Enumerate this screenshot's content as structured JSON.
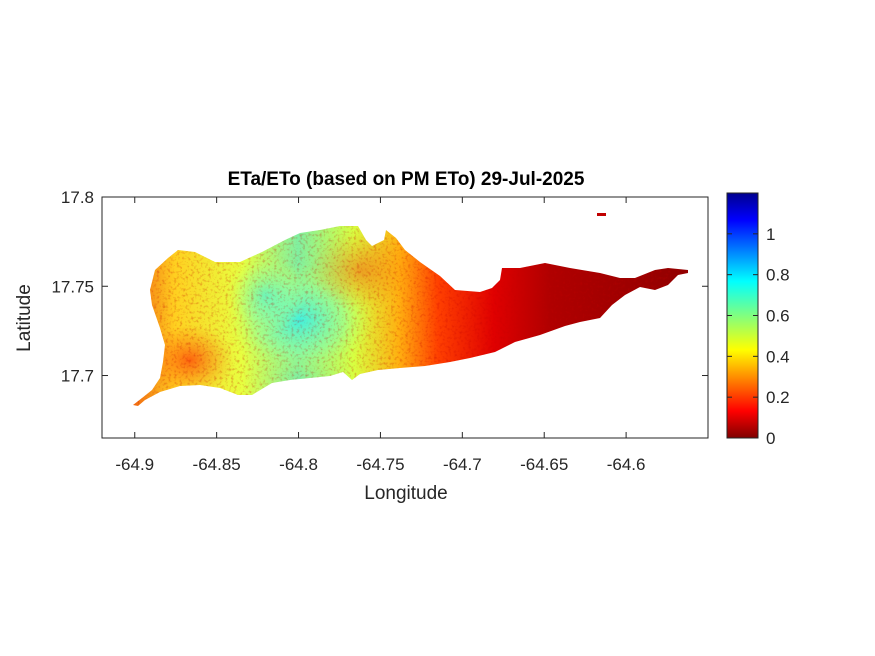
{
  "figure": {
    "title": "ETa/ETo (based on PM ETo) 29-Jul-2025",
    "xlabel": "Longitude",
    "ylabel": "Latitude"
  },
  "chart_data": {
    "type": "heatmap",
    "title": "ETa/ETo (based on PM ETo) 29-Jul-2025",
    "xlabel": "Longitude",
    "ylabel": "Latitude",
    "xlim": [
      -64.92,
      -64.55
    ],
    "ylim": [
      17.665,
      17.8
    ],
    "xticks": [
      "-64.9",
      "-64.85",
      "-64.8",
      "-64.75",
      "-64.7",
      "-64.65",
      "-64.6"
    ],
    "yticks": [
      "17.7",
      "17.75",
      "17.8"
    ],
    "colorbar": {
      "colormap": "jet",
      "range": [
        0,
        1.2
      ],
      "ticks": [
        "0",
        "0.2",
        "0.4",
        "0.6",
        "0.8",
        "1"
      ]
    },
    "colors": {
      "low": "#800000",
      "mid_low": "#ff0000",
      "mid": "#ffff00",
      "mid_high": "#00ffff",
      "high": "#00008f"
    }
  }
}
